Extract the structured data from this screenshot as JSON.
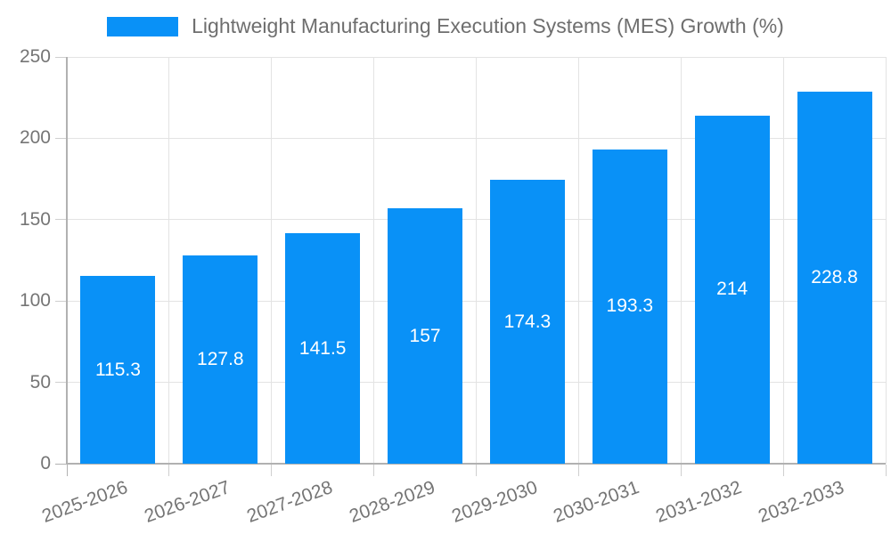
{
  "chart_data": {
    "type": "bar",
    "title": "",
    "legend": "Lightweight Manufacturing Execution Systems (MES) Growth (%)",
    "legend_position": "top",
    "categories": [
      "2025-2026",
      "2026-2027",
      "2027-2028",
      "2028-2029",
      "2029-2030",
      "2030-2031",
      "2031-2032",
      "2032-2033"
    ],
    "values": [
      115.3,
      127.8,
      141.5,
      157,
      174.3,
      193.3,
      214,
      228.8
    ],
    "value_labels": [
      "115.3",
      "127.8",
      "141.5",
      "157",
      "174.3",
      "193.3",
      "214",
      "228.8"
    ],
    "xlabel": "",
    "ylabel": "",
    "ylim": [
      0,
      250
    ],
    "yticks": [
      0,
      50,
      100,
      150,
      200,
      250
    ],
    "grid": true,
    "x_label_rotation_deg": -20,
    "colors": {
      "bar": "#0991f7",
      "grid": "#e3e3e3",
      "axis": "#b1b1b1",
      "tick": "#cfcfcf",
      "text": "#757575",
      "legend_text": "#6e6e6e",
      "value_label": "#ffffff",
      "background": "#ffffff"
    }
  }
}
